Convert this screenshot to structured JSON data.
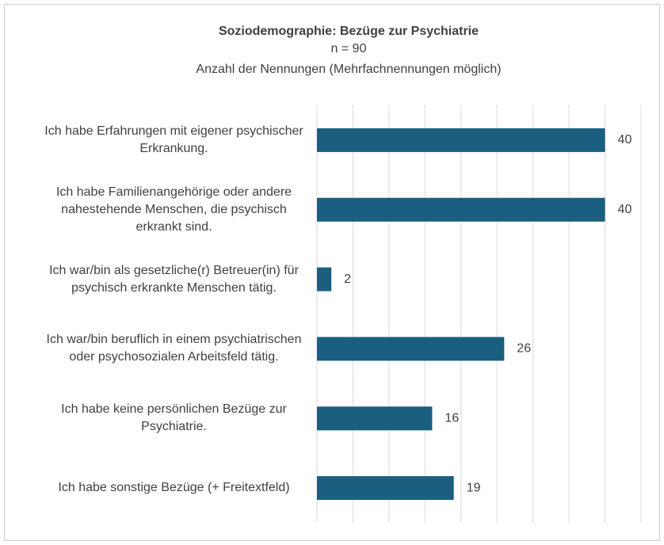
{
  "chart_data": {
    "type": "barh",
    "title": "Soziodemographie: Bezüge zur Psychiatrie",
    "subtitle": [
      "n = 90",
      "Anzahl der Nennungen (Mehrfachnennungen möglich)"
    ],
    "categories": [
      "Ich habe Erfahrungen mit eigener psychischer Erkrankung.",
      "Ich habe Familienangehörige oder andere nahestehende Menschen, die psychisch erkrankt sind.",
      "Ich war/bin als gesetzliche(r) Betreuer(in) für psychisch erkrankte Menschen tätig.",
      "Ich war/bin beruflich in einem psychiatrischen oder psychosozialen Arbeitsfeld tätig.",
      "Ich habe keine persönlichen Bezüge zur Psychiatrie.",
      "Ich habe sonstige Bezüge (+ Freitextfeld)"
    ],
    "values": [
      40,
      40,
      2,
      26,
      16,
      19
    ],
    "color": "#1a5f7f",
    "xlim": [
      0,
      45
    ],
    "xticks": [
      0,
      5,
      10,
      15,
      20,
      25,
      30,
      35,
      40,
      45
    ],
    "grid": true
  }
}
